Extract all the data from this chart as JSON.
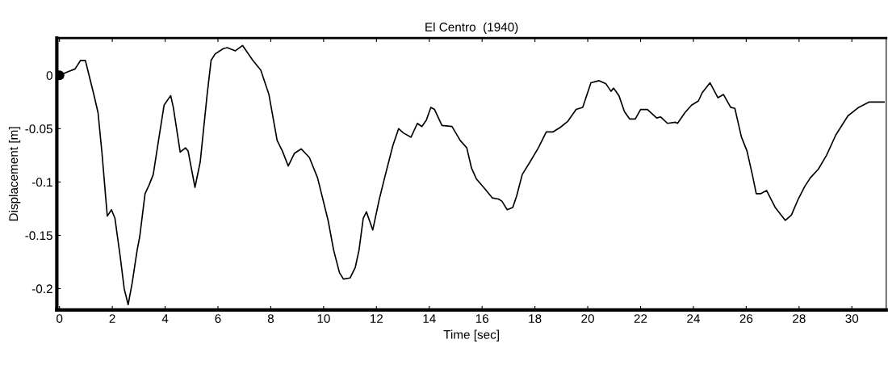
{
  "chart_data": {
    "type": "line",
    "title": "El Centro  (1940)",
    "xlabel": "Time [sec]",
    "ylabel": "Displacement [m]",
    "xlim": [
      -0.1,
      31.3
    ],
    "ylim": [
      -0.22,
      0.035
    ],
    "xticks": [
      0,
      2,
      4,
      6,
      8,
      10,
      12,
      14,
      16,
      18,
      20,
      22,
      24,
      26,
      28,
      30
    ],
    "yticks": [
      {
        "value": 0,
        "label": "0"
      },
      -0.05,
      -0.1,
      -0.15,
      -0.2
    ],
    "grid": false,
    "line_style": "solid",
    "marker": "none",
    "series": [
      {
        "color": "#000000",
        "x": [
          0,
          0.29,
          0.59,
          0.8,
          0.98,
          1.3,
          1.46,
          1.61,
          1.81,
          1.97,
          2.1,
          2.3,
          2.45,
          2.6,
          2.75,
          2.94,
          3.04,
          3.24,
          3.39,
          3.55,
          3.75,
          3.96,
          4.21,
          4.31,
          4.57,
          4.77,
          4.87,
          5.13,
          5.33,
          5.59,
          5.74,
          5.89,
          6.2,
          6.35,
          6.66,
          6.93,
          7.32,
          7.62,
          7.93,
          8.24,
          8.44,
          8.66,
          8.9,
          9.15,
          9.46,
          9.77,
          10.17,
          10.38,
          10.6,
          10.75,
          11.0,
          11.2,
          11.34,
          11.5,
          11.62,
          11.86,
          12.11,
          12.31,
          12.62,
          12.84,
          13.02,
          13.31,
          13.55,
          13.72,
          13.89,
          14.06,
          14.2,
          14.48,
          14.86,
          15.17,
          15.42,
          15.6,
          15.78,
          16.09,
          16.39,
          16.62,
          16.75,
          16.95,
          17.16,
          17.31,
          17.52,
          17.82,
          18.13,
          18.43,
          18.69,
          18.95,
          19.25,
          19.56,
          19.81,
          20.12,
          20.43,
          20.69,
          20.88,
          20.98,
          21.18,
          21.39,
          21.59,
          21.8,
          22.0,
          22.26,
          22.61,
          22.76,
          23.02,
          23.32,
          23.4,
          23.68,
          23.93,
          24.19,
          24.34,
          24.63,
          24.93,
          25.14,
          25.41,
          25.57,
          25.82,
          26.03,
          26.23,
          26.38,
          26.54,
          26.77,
          27.1,
          27.48,
          27.71,
          27.97,
          28.22,
          28.43,
          28.73,
          29.04,
          29.39,
          29.85,
          30.26,
          30.66,
          31.22
        ],
        "values": [
          0,
          0.003,
          0.006,
          0.014,
          0.014,
          -0.018,
          -0.035,
          -0.073,
          -0.132,
          -0.126,
          -0.134,
          -0.17,
          -0.2,
          -0.215,
          -0.195,
          -0.164,
          -0.151,
          -0.111,
          -0.103,
          -0.093,
          -0.061,
          -0.028,
          -0.019,
          -0.03,
          -0.072,
          -0.068,
          -0.071,
          -0.105,
          -0.081,
          -0.018,
          0.014,
          0.02,
          0.025,
          0.026,
          0.023,
          0.028,
          0.014,
          0.005,
          -0.018,
          -0.061,
          -0.071,
          -0.085,
          -0.073,
          -0.069,
          -0.077,
          -0.096,
          -0.136,
          -0.164,
          -0.185,
          -0.191,
          -0.19,
          -0.18,
          -0.164,
          -0.134,
          -0.128,
          -0.145,
          -0.116,
          -0.096,
          -0.066,
          -0.05,
          -0.054,
          -0.058,
          -0.045,
          -0.048,
          -0.042,
          -0.03,
          -0.032,
          -0.047,
          -0.048,
          -0.061,
          -0.068,
          -0.087,
          -0.097,
          -0.106,
          -0.115,
          -0.116,
          -0.118,
          -0.126,
          -0.124,
          -0.113,
          -0.093,
          -0.081,
          -0.068,
          -0.053,
          -0.053,
          -0.049,
          -0.043,
          -0.032,
          -0.03,
          -0.007,
          -0.005,
          -0.008,
          -0.015,
          -0.012,
          -0.019,
          -0.034,
          -0.041,
          -0.041,
          -0.032,
          -0.032,
          -0.04,
          -0.039,
          -0.045,
          -0.044,
          -0.045,
          -0.035,
          -0.028,
          -0.024,
          -0.016,
          -0.007,
          -0.021,
          -0.018,
          -0.03,
          -0.031,
          -0.058,
          -0.071,
          -0.093,
          -0.111,
          -0.111,
          -0.108,
          -0.124,
          -0.136,
          -0.131,
          -0.116,
          -0.104,
          -0.096,
          -0.088,
          -0.075,
          -0.056,
          -0.038,
          -0.03,
          -0.025,
          -0.025
        ]
      },
      {
        "type": "scatter",
        "marker": "circle",
        "color": "#000000",
        "x": [
          0
        ],
        "values": [
          0
        ]
      }
    ]
  }
}
